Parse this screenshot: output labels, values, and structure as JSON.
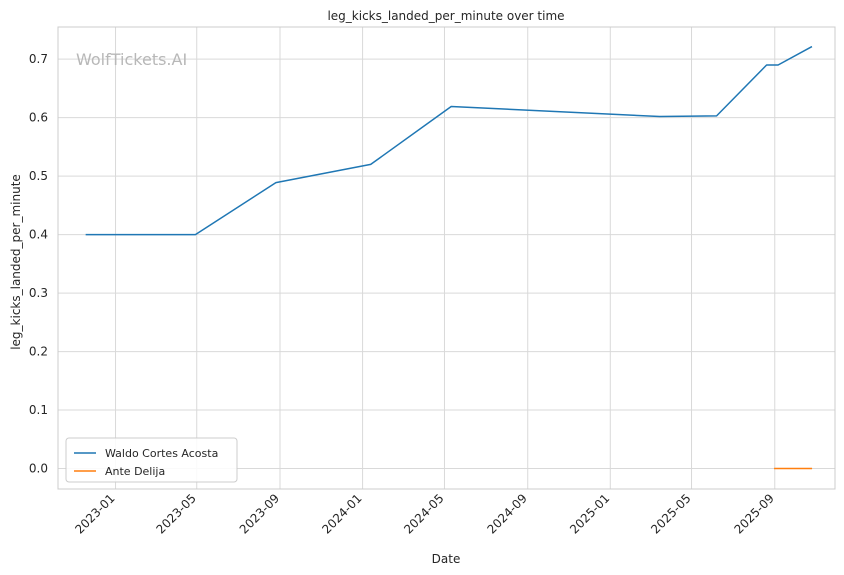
{
  "chart_data": {
    "type": "line",
    "title": "leg_kicks_landed_per_minute over time",
    "xlabel": "Date",
    "ylabel": "leg_kicks_landed_per_minute",
    "watermark": "WolfTickets.AI",
    "xlim": [
      "2022-10-08",
      "2025-11-29"
    ],
    "ylim": [
      -0.035,
      0.755
    ],
    "x_ticks": [
      {
        "date": "2023-01-01",
        "label": "2023-01"
      },
      {
        "date": "2023-05-01",
        "label": "2023-05"
      },
      {
        "date": "2023-09-01",
        "label": "2023-09"
      },
      {
        "date": "2024-01-01",
        "label": "2024-01"
      },
      {
        "date": "2024-05-01",
        "label": "2024-05"
      },
      {
        "date": "2024-09-01",
        "label": "2024-09"
      },
      {
        "date": "2025-01-01",
        "label": "2025-01"
      },
      {
        "date": "2025-05-01",
        "label": "2025-05"
      },
      {
        "date": "2025-09-01",
        "label": "2025-09"
      }
    ],
    "y_ticks": [
      {
        "value": 0.0,
        "label": "0.0"
      },
      {
        "value": 0.1,
        "label": "0.1"
      },
      {
        "value": 0.2,
        "label": "0.2"
      },
      {
        "value": 0.3,
        "label": "0.3"
      },
      {
        "value": 0.4,
        "label": "0.4"
      },
      {
        "value": 0.5,
        "label": "0.5"
      },
      {
        "value": 0.6,
        "label": "0.6"
      },
      {
        "value": 0.7,
        "label": "0.7"
      }
    ],
    "grid": true,
    "legend_position": "lower-left",
    "series": [
      {
        "name": "Waldo Cortes Acosta",
        "color": "#1f77b4",
        "points": [
          {
            "x": "2022-11-19",
            "y": 0.4
          },
          {
            "x": "2023-04-29",
            "y": 0.4
          },
          {
            "x": "2023-08-26",
            "y": 0.489
          },
          {
            "x": "2024-01-13",
            "y": 0.52
          },
          {
            "x": "2024-05-11",
            "y": 0.619
          },
          {
            "x": "2025-03-15",
            "y": 0.602
          },
          {
            "x": "2025-06-07",
            "y": 0.603
          },
          {
            "x": "2025-08-20",
            "y": 0.69
          },
          {
            "x": "2025-09-06",
            "y": 0.69
          },
          {
            "x": "2025-10-25",
            "y": 0.721
          }
        ]
      },
      {
        "name": "Ante Delija",
        "color": "#ff7f0e",
        "points": [
          {
            "x": "2025-09-01",
            "y": 0.0
          },
          {
            "x": "2025-10-25",
            "y": 0.0
          }
        ]
      }
    ]
  }
}
